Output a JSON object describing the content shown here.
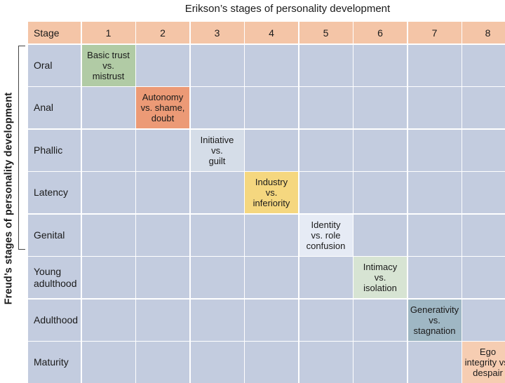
{
  "top_title": "Erikson’s stages of personality development",
  "side_title": "Freud’s stages of personality development",
  "header": {
    "stage_label": "Stage",
    "numbers": [
      "1",
      "2",
      "3",
      "4",
      "5",
      "6",
      "7",
      "8"
    ]
  },
  "rows": [
    {
      "label": "Oral",
      "cell": "Basic trust\nvs.\nmistrust",
      "color": "#b1cba5"
    },
    {
      "label": "Anal",
      "cell": "Autonomy\nvs. shame,\ndoubt",
      "color": "#ec9a76"
    },
    {
      "label": "Phallic",
      "cell": "Initiative\nvs.\nguilt",
      "color": "#d5dde8"
    },
    {
      "label": "Latency",
      "cell": "Industry\nvs.\ninferiority",
      "color": "#f5d77f"
    },
    {
      "label": "Genital",
      "cell": "Identity\nvs. role\nconfusion",
      "color": "#e6ebf5"
    },
    {
      "label": "Young\nadulthood",
      "cell": "Intimacy\nvs.\nisolation",
      "color": "#d7e4d3"
    },
    {
      "label": "Adulthood",
      "cell": "Generativity\nvs.\nstagnation",
      "color": "#9fb7c4"
    },
    {
      "label": "Maturity",
      "cell": "Ego\nintegrity vs.\ndespair",
      "color": "#f6cdb2"
    }
  ],
  "colors": {
    "header_bg": "#f4c5a7",
    "cell_bg": "#c3ccdf"
  }
}
